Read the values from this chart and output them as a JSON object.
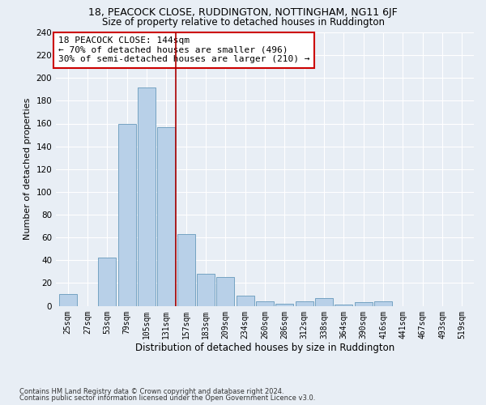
{
  "title1": "18, PEACOCK CLOSE, RUDDINGTON, NOTTINGHAM, NG11 6JF",
  "title2": "Size of property relative to detached houses in Ruddington",
  "xlabel": "Distribution of detached houses by size in Ruddington",
  "ylabel": "Number of detached properties",
  "categories": [
    "25sqm",
    "27sqm",
    "53sqm",
    "79sqm",
    "105sqm",
    "131sqm",
    "157sqm",
    "183sqm",
    "209sqm",
    "234sqm",
    "260sqm",
    "286sqm",
    "312sqm",
    "338sqm",
    "364sqm",
    "390sqm",
    "416sqm",
    "441sqm",
    "467sqm",
    "493sqm",
    "519sqm"
  ],
  "bar_heights": [
    10,
    0,
    42,
    160,
    192,
    157,
    63,
    28,
    25,
    9,
    4,
    2,
    4,
    7,
    1,
    3,
    4,
    0,
    0,
    0,
    0
  ],
  "bar_color": "#b8d0e8",
  "bar_edge_color": "#6699bb",
  "annotation_text": "18 PEACOCK CLOSE: 144sqm\n← 70% of detached houses are smaller (496)\n30% of semi-detached houses are larger (210) →",
  "annotation_box_color": "#ffffff",
  "annotation_box_edge_color": "#cc0000",
  "vline_x": 5.5,
  "vline_color": "#aa0000",
  "ylim": [
    0,
    240
  ],
  "yticks": [
    0,
    20,
    40,
    60,
    80,
    100,
    120,
    140,
    160,
    180,
    200,
    220,
    240
  ],
  "footer1": "Contains HM Land Registry data © Crown copyright and database right 2024.",
  "footer2": "Contains public sector information licensed under the Open Government Licence v3.0.",
  "bg_color": "#e8eef5",
  "plot_bg_color": "#e8eef5",
  "title1_fontsize": 9,
  "title2_fontsize": 8.5,
  "grid_color": "#ffffff",
  "annotation_fontsize": 8
}
